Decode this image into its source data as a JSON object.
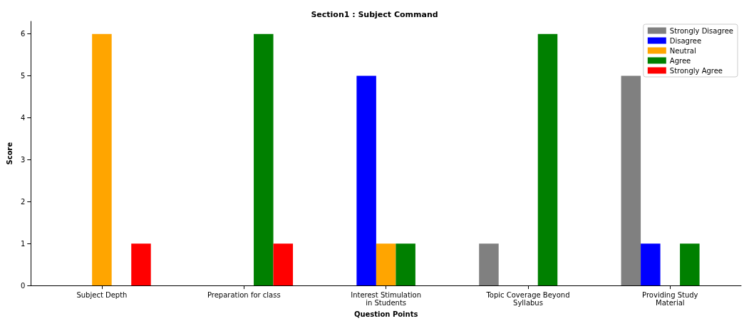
{
  "chart_data": {
    "type": "bar",
    "title": "Section1 : Subject Command",
    "xlabel": "Question Points",
    "ylabel": "Score",
    "categories": [
      "Subject Depth",
      "Preparation for class",
      "Interest Stimulation\nin Students",
      "Topic Coverage Beyond\nSyllabus",
      "Providing Study\nMaterial"
    ],
    "series": [
      {
        "name": "Strongly Disagree",
        "color": "#808080",
        "values": [
          0,
          0,
          0,
          1,
          5
        ]
      },
      {
        "name": "Disagree",
        "color": "#0000ff",
        "values": [
          0,
          0,
          5,
          0,
          1
        ]
      },
      {
        "name": "Neutral",
        "color": "#ffa500",
        "values": [
          6,
          0,
          1,
          0,
          0
        ]
      },
      {
        "name": "Agree",
        "color": "#008000",
        "values": [
          0,
          6,
          1,
          6,
          1
        ]
      },
      {
        "name": "Strongly Agree",
        "color": "#ff0000",
        "values": [
          1,
          1,
          0,
          0,
          0
        ]
      }
    ],
    "ylim": [
      0,
      6.3
    ],
    "yticks": [
      0,
      1,
      2,
      3,
      4,
      5,
      6
    ],
    "grid": false,
    "legend": "top right"
  }
}
